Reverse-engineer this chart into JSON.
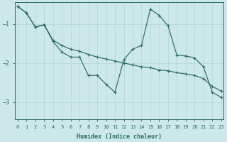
{
  "xlabel": "Humidex (Indice chaleur)",
  "bg_color": "#cce8e8",
  "grid_color": "#b8d8d8",
  "line_color": "#2a6b60",
  "xlim": [
    -0.3,
    23.3
  ],
  "ylim": [
    -3.45,
    -0.45
  ],
  "yticks": [
    -1,
    -2,
    -3
  ],
  "xticks": [
    0,
    1,
    2,
    3,
    4,
    5,
    6,
    7,
    8,
    9,
    10,
    11,
    12,
    13,
    14,
    15,
    16,
    17,
    18,
    19,
    20,
    21,
    22,
    23
  ],
  "line1_x": [
    0,
    1,
    2,
    3,
    4,
    5,
    6,
    7,
    8,
    9,
    10,
    11,
    12,
    13,
    14,
    15,
    16,
    17,
    18,
    19,
    20,
    21,
    22,
    23
  ],
  "line1_y": [
    -0.55,
    -0.72,
    -1.08,
    -1.02,
    -1.42,
    -1.55,
    -1.65,
    -1.7,
    -1.78,
    -1.85,
    -1.9,
    -1.95,
    -2.0,
    -2.05,
    -2.1,
    -2.12,
    -2.18,
    -2.2,
    -2.25,
    -2.28,
    -2.32,
    -2.4,
    -2.6,
    -2.72
  ],
  "line2_x": [
    0,
    1,
    2,
    3,
    4,
    5,
    6,
    7,
    8,
    9,
    10,
    11,
    12,
    13,
    14,
    15,
    16,
    17,
    18,
    19,
    20,
    21,
    22,
    23
  ],
  "line2_y": [
    -0.55,
    -0.72,
    -1.08,
    -1.02,
    -1.45,
    -1.72,
    -1.85,
    -1.85,
    -2.32,
    -2.32,
    -2.55,
    -2.75,
    -1.92,
    -1.65,
    -1.55,
    -0.62,
    -0.78,
    -1.05,
    -1.8,
    -1.82,
    -1.87,
    -2.1,
    -2.75,
    -2.88
  ]
}
